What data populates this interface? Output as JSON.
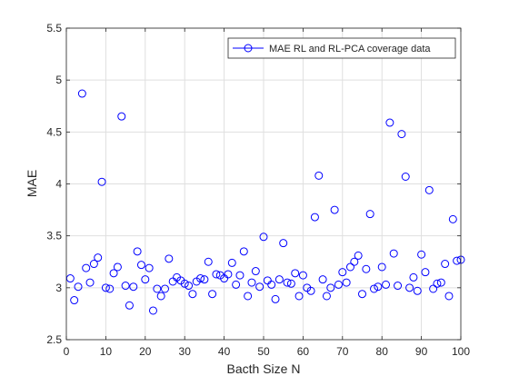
{
  "chart_data": {
    "type": "scatter",
    "title": "",
    "xlabel": "Bacth Size N",
    "ylabel": "MAE",
    "xlim": [
      0,
      100
    ],
    "ylim": [
      2.5,
      5.5
    ],
    "xticks": [
      "0",
      "10",
      "20",
      "30",
      "40",
      "50",
      "60",
      "70",
      "80",
      "90",
      "100"
    ],
    "yticks": [
      "2.5",
      "3",
      "3.5",
      "4",
      "4.5",
      "5",
      "5.5"
    ],
    "grid": true,
    "legend_position": "top-right",
    "marker": "circle-open",
    "color": "#0000ff",
    "series": [
      {
        "name": "MAE RL and RL-PCA coverage data",
        "x": [
          1,
          2,
          3,
          4,
          5,
          6,
          7,
          8,
          9,
          10,
          11,
          12,
          13,
          14,
          15,
          16,
          17,
          18,
          19,
          20,
          21,
          22,
          23,
          24,
          25,
          26,
          27,
          28,
          29,
          30,
          31,
          32,
          33,
          34,
          35,
          36,
          37,
          38,
          39,
          40,
          41,
          42,
          43,
          44,
          45,
          46,
          47,
          48,
          49,
          50,
          51,
          52,
          53,
          54,
          55,
          56,
          57,
          58,
          59,
          60,
          61,
          62,
          63,
          64,
          65,
          66,
          67,
          68,
          69,
          70,
          71,
          72,
          73,
          74,
          75,
          76,
          77,
          78,
          79,
          80,
          81,
          82,
          83,
          84,
          85,
          86,
          87,
          88,
          89,
          90,
          91,
          92,
          93,
          94,
          95,
          96,
          97,
          98,
          99,
          100
        ],
        "y": [
          3.09,
          2.88,
          3.01,
          4.87,
          3.19,
          3.05,
          3.23,
          3.29,
          4.02,
          3.0,
          2.99,
          3.14,
          3.2,
          4.65,
          3.02,
          2.83,
          3.01,
          3.35,
          3.22,
          3.08,
          3.19,
          2.78,
          2.99,
          2.92,
          2.99,
          3.28,
          3.06,
          3.1,
          3.07,
          3.04,
          3.02,
          2.94,
          3.06,
          3.09,
          3.08,
          3.25,
          2.94,
          3.13,
          3.12,
          3.09,
          3.13,
          3.24,
          3.03,
          3.12,
          3.35,
          2.92,
          3.05,
          3.16,
          3.01,
          3.49,
          3.07,
          3.03,
          2.89,
          3.08,
          3.43,
          3.05,
          3.04,
          3.14,
          2.92,
          3.12,
          3.0,
          2.97,
          3.68,
          4.08,
          3.08,
          2.92,
          3.0,
          3.75,
          3.03,
          3.15,
          3.05,
          3.2,
          3.25,
          3.31,
          2.94,
          3.18,
          3.71,
          2.99,
          3.01,
          3.2,
          3.03,
          4.59,
          3.33,
          3.02,
          4.48,
          4.07,
          3.0,
          3.1,
          2.97,
          3.32,
          3.15,
          3.94,
          2.99,
          3.04,
          3.05,
          3.23,
          2.92,
          3.66,
          3.26,
          3.27
        ]
      }
    ]
  }
}
